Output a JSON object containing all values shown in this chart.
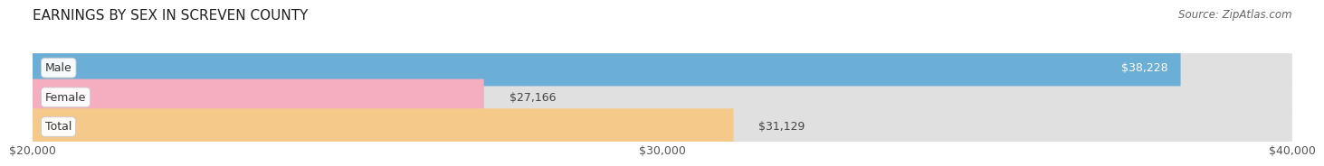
{
  "title": "EARNINGS BY SEX IN SCREVEN COUNTY",
  "source": "Source: ZipAtlas.com",
  "categories": [
    "Male",
    "Female",
    "Total"
  ],
  "values": [
    38228,
    27166,
    31129
  ],
  "bar_colors": [
    "#6baed6",
    "#f4aec0",
    "#f5c98a"
  ],
  "bar_bg_color": "#e0e0e0",
  "xlim_min": 20000,
  "xlim_max": 40000,
  "xticks": [
    20000,
    30000,
    40000
  ],
  "xtick_labels": [
    "$20,000",
    "$30,000",
    "$40,000"
  ],
  "title_fontsize": 11,
  "source_fontsize": 8.5,
  "tick_fontsize": 9,
  "bar_label_fontsize": 9,
  "category_fontsize": 9,
  "fig_bg_color": "#ffffff",
  "bar_height": 0.62
}
